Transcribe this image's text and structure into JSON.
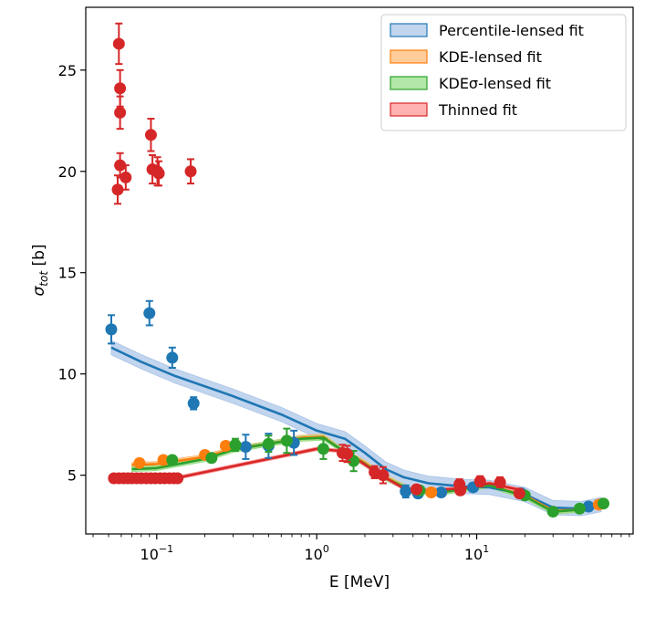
{
  "chart_data": {
    "type": "scatter",
    "xscale": "log",
    "xlim": [
      0.036,
      95
    ],
    "ylim": [
      2.1,
      28.1
    ],
    "xlabel": "E [MeV]",
    "ylabel_main": "σ",
    "ylabel_sub": "tot",
    "ylabel_unit": " [b]",
    "yticks": [
      5,
      10,
      15,
      20,
      25
    ],
    "xticks": [
      {
        "value": 0.1,
        "base": "10",
        "exp": "−1"
      },
      {
        "value": 1,
        "base": "10",
        "exp": "0"
      },
      {
        "value": 10,
        "base": "10",
        "exp": "1"
      }
    ],
    "legend": {
      "position": "upper right",
      "entries": [
        {
          "label": "Percentile-lensed fit",
          "series": 0
        },
        {
          "label": "KDE-lensed fit",
          "series": 1
        },
        {
          "label": "KDEσ-lensed fit",
          "series": 2
        },
        {
          "label": "Thinned fit",
          "series": 3
        }
      ]
    },
    "series": [
      {
        "name": "Percentile-lensed fit",
        "color": "#1f77b4",
        "fill": "#aec7e8",
        "fit": [
          [
            0.052,
            11.3
          ],
          [
            0.08,
            10.6
          ],
          [
            0.13,
            9.9
          ],
          [
            0.3,
            8.9
          ],
          [
            0.6,
            8.0
          ],
          [
            1.0,
            7.2
          ],
          [
            1.5,
            6.8
          ],
          [
            2.0,
            6.1
          ],
          [
            2.7,
            5.3
          ],
          [
            3.5,
            4.9
          ],
          [
            5,
            4.6
          ],
          [
            8,
            4.45
          ],
          [
            12,
            4.4
          ],
          [
            20,
            4.05
          ],
          [
            30,
            3.4
          ],
          [
            45,
            3.35
          ],
          [
            60,
            3.55
          ]
        ],
        "band_width": 0.35,
        "points": [
          {
            "x": 0.052,
            "y": 12.2,
            "err": 0.7
          },
          {
            "x": 0.09,
            "y": 13.0,
            "err": 0.6
          },
          {
            "x": 0.125,
            "y": 10.8,
            "err": 0.5
          },
          {
            "x": 0.17,
            "y": 8.55,
            "err": 0.3
          },
          {
            "x": 0.36,
            "y": 6.4,
            "err": 0.6
          },
          {
            "x": 0.5,
            "y": 6.45,
            "err": 0.6
          },
          {
            "x": 0.72,
            "y": 6.6,
            "err": 0.6
          },
          {
            "x": 3.6,
            "y": 4.2,
            "err": 0.3
          },
          {
            "x": 4.3,
            "y": 4.1,
            "err": 0.2
          },
          {
            "x": 6.0,
            "y": 4.15,
            "err": 0.15
          },
          {
            "x": 9.5,
            "y": 4.4,
            "err": 0.2
          },
          {
            "x": 19.0,
            "y": 4.1,
            "err": 0.15
          },
          {
            "x": 50.0,
            "y": 3.45,
            "err": 0.1
          }
        ]
      },
      {
        "name": "KDE-lensed fit",
        "color": "#ff7f0e",
        "fill": "#ffbb78",
        "fit": [
          [
            0.07,
            5.5
          ],
          [
            0.1,
            5.55
          ],
          [
            0.2,
            5.9
          ],
          [
            0.3,
            6.3
          ],
          [
            0.5,
            6.55
          ],
          [
            0.8,
            6.85
          ],
          [
            1.1,
            6.9
          ],
          [
            1.4,
            6.3
          ],
          [
            2.0,
            5.6
          ],
          [
            2.7,
            4.9
          ],
          [
            4,
            4.2
          ],
          [
            6,
            4.15
          ],
          [
            8,
            4.3
          ],
          [
            12,
            4.5
          ],
          [
            20,
            4.0
          ],
          [
            30,
            3.25
          ],
          [
            45,
            3.3
          ],
          [
            60,
            3.55
          ]
        ],
        "band_width": 0.12,
        "points": [
          {
            "x": 0.078,
            "y": 5.6,
            "err": 0.15
          },
          {
            "x": 0.11,
            "y": 5.75,
            "err": 0.15
          },
          {
            "x": 0.2,
            "y": 6.0,
            "err": 0.2
          },
          {
            "x": 0.27,
            "y": 6.45,
            "err": 0.2
          },
          {
            "x": 5.2,
            "y": 4.15,
            "err": 0.2
          },
          {
            "x": 58.0,
            "y": 3.55,
            "err": 0.1
          }
        ]
      },
      {
        "name": "KDEσ-lensed fit",
        "color": "#2ca02c",
        "fill": "#98df8a",
        "fit": [
          [
            0.07,
            5.3
          ],
          [
            0.1,
            5.35
          ],
          [
            0.2,
            5.8
          ],
          [
            0.3,
            6.25
          ],
          [
            0.5,
            6.55
          ],
          [
            0.8,
            6.8
          ],
          [
            1.1,
            6.85
          ],
          [
            1.4,
            6.3
          ],
          [
            2.0,
            5.55
          ],
          [
            2.7,
            4.85
          ],
          [
            4,
            4.2
          ],
          [
            6,
            4.15
          ],
          [
            8,
            4.3
          ],
          [
            12,
            4.5
          ],
          [
            20,
            3.95
          ],
          [
            30,
            3.2
          ],
          [
            45,
            3.3
          ],
          [
            60,
            3.6
          ]
        ],
        "band_width": 0.12,
        "points": [
          {
            "x": 0.125,
            "y": 5.75,
            "err": 0.2
          },
          {
            "x": 0.22,
            "y": 5.85,
            "err": 0.2
          },
          {
            "x": 0.31,
            "y": 6.5,
            "err": 0.3
          },
          {
            "x": 0.5,
            "y": 6.55,
            "err": 0.4
          },
          {
            "x": 0.65,
            "y": 6.7,
            "err": 0.6
          },
          {
            "x": 1.1,
            "y": 6.3,
            "err": 0.5
          },
          {
            "x": 1.7,
            "y": 5.7,
            "err": 0.5
          },
          {
            "x": 4.4,
            "y": 4.25,
            "err": 0.2
          },
          {
            "x": 20.0,
            "y": 4.0,
            "err": 0.15
          },
          {
            "x": 30.0,
            "y": 3.2,
            "err": 0.1
          },
          {
            "x": 44.0,
            "y": 3.35,
            "err": 0.1
          },
          {
            "x": 62.0,
            "y": 3.6,
            "err": 0.1
          }
        ]
      },
      {
        "name": "Thinned fit",
        "color": "#d62728",
        "fill": "#ff9896",
        "fit": [
          [
            0.055,
            4.85
          ],
          [
            0.14,
            4.9
          ],
          [
            1.0,
            6.3
          ],
          [
            1.4,
            6.2
          ],
          [
            1.7,
            5.9
          ],
          [
            2.4,
            5.1
          ],
          [
            3.5,
            4.35
          ],
          [
            5,
            4.25
          ],
          [
            8,
            4.35
          ],
          [
            12,
            4.6
          ],
          [
            18,
            4.3
          ],
          [
            20,
            4.1
          ]
        ],
        "band_width": 0.08,
        "points": [
          {
            "x": 0.058,
            "y": 26.3,
            "err": 1.0
          },
          {
            "x": 0.059,
            "y": 24.1,
            "err": 0.9
          },
          {
            "x": 0.059,
            "y": 22.9,
            "err": 0.8
          },
          {
            "x": 0.059,
            "y": 20.3,
            "err": 0.6
          },
          {
            "x": 0.057,
            "y": 19.1,
            "err": 0.7
          },
          {
            "x": 0.064,
            "y": 19.7,
            "err": 0.6
          },
          {
            "x": 0.092,
            "y": 21.8,
            "err": 0.8
          },
          {
            "x": 0.094,
            "y": 20.1,
            "err": 0.7
          },
          {
            "x": 0.101,
            "y": 20.0,
            "err": 0.7
          },
          {
            "x": 0.103,
            "y": 19.9,
            "err": 0.6
          },
          {
            "x": 0.163,
            "y": 20.0,
            "err": 0.6
          },
          {
            "x": 0.054,
            "y": 4.85,
            "err": 0.1
          },
          {
            "x": 0.058,
            "y": 4.85,
            "err": 0.1
          },
          {
            "x": 0.062,
            "y": 4.85,
            "err": 0.1
          },
          {
            "x": 0.066,
            "y": 4.85,
            "err": 0.1
          },
          {
            "x": 0.07,
            "y": 4.85,
            "err": 0.1
          },
          {
            "x": 0.075,
            "y": 4.85,
            "err": 0.1
          },
          {
            "x": 0.08,
            "y": 4.85,
            "err": 0.1
          },
          {
            "x": 0.086,
            "y": 4.85,
            "err": 0.1
          },
          {
            "x": 0.092,
            "y": 4.85,
            "err": 0.1
          },
          {
            "x": 0.098,
            "y": 4.85,
            "err": 0.1
          },
          {
            "x": 0.105,
            "y": 4.85,
            "err": 0.1
          },
          {
            "x": 0.112,
            "y": 4.85,
            "err": 0.1
          },
          {
            "x": 0.12,
            "y": 4.85,
            "err": 0.1
          },
          {
            "x": 0.128,
            "y": 4.85,
            "err": 0.1
          },
          {
            "x": 0.135,
            "y": 4.85,
            "err": 0.1
          },
          {
            "x": 1.45,
            "y": 6.1,
            "err": 0.4
          },
          {
            "x": 1.55,
            "y": 6.05,
            "err": 0.4
          },
          {
            "x": 2.3,
            "y": 5.15,
            "err": 0.3
          },
          {
            "x": 2.6,
            "y": 5.0,
            "err": 0.4
          },
          {
            "x": 4.2,
            "y": 4.3,
            "err": 0.2
          },
          {
            "x": 7.8,
            "y": 4.55,
            "err": 0.25
          },
          {
            "x": 7.9,
            "y": 4.25,
            "err": 0.2
          },
          {
            "x": 10.5,
            "y": 4.7,
            "err": 0.25
          },
          {
            "x": 14.0,
            "y": 4.65,
            "err": 0.25
          },
          {
            "x": 18.5,
            "y": 4.1,
            "err": 0.15
          }
        ]
      }
    ]
  }
}
